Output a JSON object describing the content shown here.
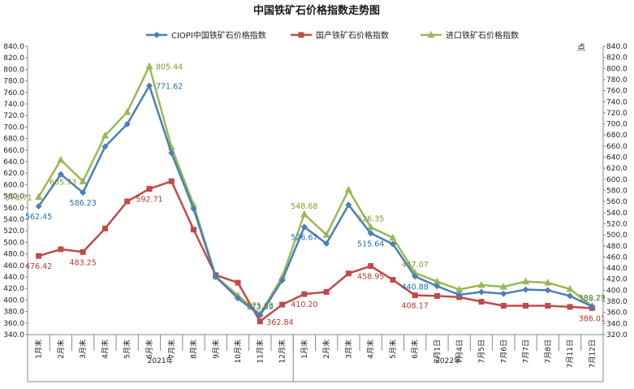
{
  "chart_data": {
    "type": "line",
    "title": "中国铁矿石价格指数走势图",
    "ylabel_right": "点",
    "ylim": [
      340,
      840
    ],
    "yticks": [
      "340.0",
      "360.0",
      "380.0",
      "400.0",
      "420.0",
      "440.0",
      "460.0",
      "480.0",
      "500.0",
      "520.0",
      "540.0",
      "560.0",
      "580.0",
      "600.0",
      "620.0",
      "640.0",
      "660.0",
      "680.0",
      "700.0",
      "720.0",
      "740.0",
      "760.0",
      "780.0",
      "800.0",
      "820.0",
      "840.0"
    ],
    "ylim_right": [
      320,
      840
    ],
    "yticks_right": [
      "320.0",
      "340.0",
      "360.0",
      "380.0",
      "400.0",
      "420.0",
      "440.0",
      "460.0",
      "480.0",
      "500.0",
      "520.0",
      "540.0",
      "560.0",
      "580.0",
      "600.0",
      "620.0",
      "640.0",
      "660.0",
      "680.0",
      "700.0",
      "720.0",
      "740.0",
      "760.0",
      "780.0",
      "800.0",
      "820.0",
      "840.0"
    ],
    "categories": [
      "1月末",
      "2月末",
      "3月末",
      "4月末",
      "5月末",
      "6月末",
      "7月末",
      "8月末",
      "9月末",
      "10月末",
      "11月末",
      "12月末",
      "1月末",
      "2月末",
      "3月末",
      "4月末",
      "5月末",
      "6月末",
      "7月1日",
      "7月4日",
      "7月5日",
      "7月6日",
      "7月7日",
      "7月8日",
      "7月11日",
      "7月12日"
    ],
    "year_groups": [
      {
        "label": "2021年",
        "count": 12
      },
      {
        "label": "2022年",
        "count": 14
      }
    ],
    "legend_position": "top",
    "grid": false,
    "series": [
      {
        "name": "CIOPI中国铁矿石价格指数",
        "color": "#4a7ebb",
        "marker": "diamond",
        "values": [
          562.45,
          618,
          586.23,
          666,
          705,
          771.62,
          655,
          558,
          440,
          403,
          373.59,
          434,
          526.67,
          498,
          565,
          515.64,
          497,
          440.88,
          424,
          409,
          414,
          411,
          418,
          417,
          407,
          388.77
        ],
        "labels": [
          {
            "i": 0,
            "text": "562.45",
            "pos": "below"
          },
          {
            "i": 2,
            "text": "586.23",
            "pos": "below"
          },
          {
            "i": 5,
            "text": "771.62",
            "pos": "right"
          },
          {
            "i": 10,
            "text": "373.59",
            "pos": "above"
          },
          {
            "i": 12,
            "text": "526.67",
            "pos": "below"
          },
          {
            "i": 15,
            "text": "515.64",
            "pos": "below"
          },
          {
            "i": 17,
            "text": "440.88",
            "pos": "below"
          },
          {
            "i": 25,
            "text": "388.77",
            "pos": "above"
          }
        ]
      },
      {
        "name": "国产铁矿石价格指数",
        "color": "#be4b48",
        "marker": "square",
        "values": [
          476.42,
          488,
          483.25,
          524,
          571,
          592.71,
          606,
          522,
          443,
          430,
          362.84,
          392,
          410.2,
          414,
          446,
          458.95,
          435,
          408.17,
          407,
          405,
          397,
          390,
          390,
          390,
          388,
          386.01
        ],
        "labels": [
          {
            "i": 0,
            "text": "476.42",
            "pos": "below"
          },
          {
            "i": 2,
            "text": "483.25",
            "pos": "below"
          },
          {
            "i": 5,
            "text": "592.71",
            "pos": "below"
          },
          {
            "i": 10,
            "text": "362.84",
            "pos": "right"
          },
          {
            "i": 12,
            "text": "410.20",
            "pos": "below"
          },
          {
            "i": 15,
            "text": "458.95",
            "pos": "below"
          },
          {
            "i": 17,
            "text": "408.17",
            "pos": "below"
          },
          {
            "i": 25,
            "text": "386.01",
            "pos": "below"
          }
        ]
      },
      {
        "name": "进口铁矿石价格指数",
        "color": "#98b954",
        "marker": "triangle",
        "values": [
          578.71,
          643,
          605.73,
          685,
          726,
          805.44,
          665,
          565,
          441,
          408,
          375.63,
          440,
          548.68,
          513,
          591,
          526.35,
          508,
          447.07,
          432,
          418,
          426,
          423,
          432,
          430,
          419,
          389.29
        ],
        "labels": [
          {
            "i": 0,
            "text": "578.71",
            "pos": "left"
          },
          {
            "i": 2,
            "text": "605.73",
            "pos": "left"
          },
          {
            "i": 5,
            "text": "805.44",
            "pos": "right"
          },
          {
            "i": 10,
            "text": "375.63",
            "pos": "above"
          },
          {
            "i": 12,
            "text": "548.68",
            "pos": "above"
          },
          {
            "i": 15,
            "text": "526.35",
            "pos": "above"
          },
          {
            "i": 17,
            "text": "447.07",
            "pos": "above"
          },
          {
            "i": 25,
            "text": "389.29",
            "pos": "above"
          }
        ]
      }
    ]
  }
}
